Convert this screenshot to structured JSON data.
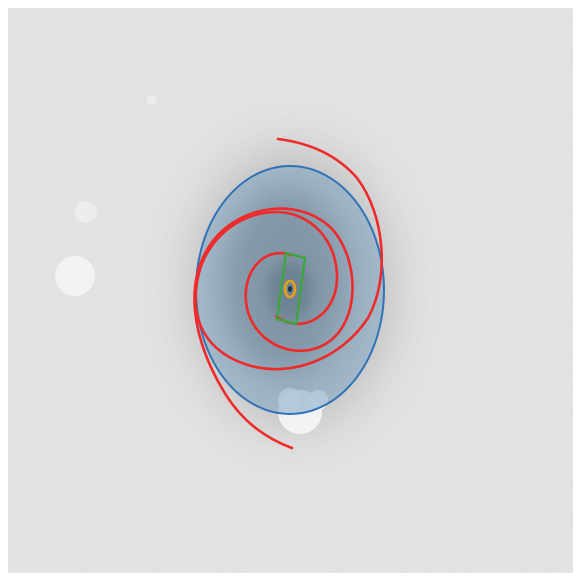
{
  "image": {
    "subject": "spiral-galaxy",
    "colors": {
      "frame": "#ffffff",
      "sky": "#e6e6e6",
      "galaxy_core": "#4a4a4a",
      "disk_fill": "#7fa6c4",
      "disk_outline": "#2f73b6",
      "spiral_arms": "#ee2a2a",
      "bar": "#38a83a",
      "bulge": "#e4a11a",
      "mask": "#f4f6f8"
    }
  }
}
